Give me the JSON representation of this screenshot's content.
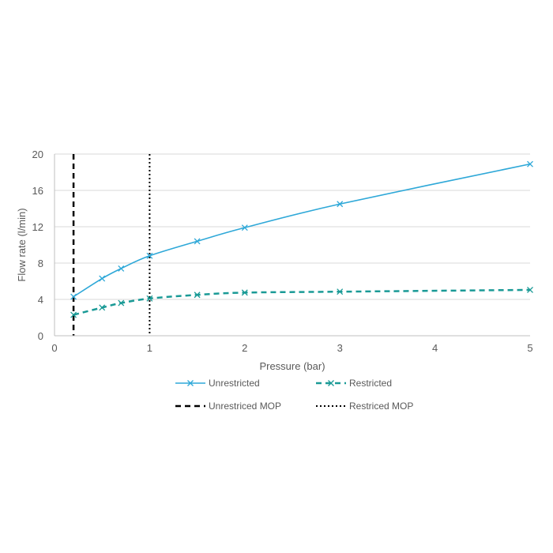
{
  "chart_data": {
    "type": "line",
    "xlabel": "Pressure (bar)",
    "ylabel": "Flow rate (l/min)",
    "xlim": [
      0,
      5
    ],
    "ylim": [
      0,
      20
    ],
    "x_ticks": [
      0,
      1,
      2,
      3,
      4,
      5
    ],
    "y_ticks": [
      0,
      4,
      8,
      12,
      16,
      20
    ],
    "grid": "horizontal",
    "legend_position": "bottom",
    "series": [
      {
        "name": "Unrestricted",
        "color": "#2ea8d8",
        "style": "solid",
        "marker": "x",
        "x": [
          0.2,
          0.5,
          0.7,
          1.0,
          1.5,
          2.0,
          3.0,
          5.0
        ],
        "y": [
          4.3,
          6.3,
          7.4,
          8.8,
          10.4,
          11.9,
          14.5,
          18.9
        ]
      },
      {
        "name": "Restricted",
        "color": "#1a9a96",
        "style": "dashed",
        "marker": "x",
        "x": [
          0.2,
          0.5,
          0.7,
          1.0,
          1.5,
          2.0,
          3.0,
          5.0
        ],
        "y": [
          2.3,
          3.1,
          3.6,
          4.1,
          4.5,
          4.75,
          4.85,
          5.05
        ]
      }
    ],
    "vertical_lines": [
      {
        "name": "Unrestriced MOP",
        "x": 0.2,
        "color": "#000000",
        "style": "dashed"
      },
      {
        "name": "Restriced MOP",
        "x": 1.0,
        "color": "#000000",
        "style": "dotted"
      }
    ]
  }
}
